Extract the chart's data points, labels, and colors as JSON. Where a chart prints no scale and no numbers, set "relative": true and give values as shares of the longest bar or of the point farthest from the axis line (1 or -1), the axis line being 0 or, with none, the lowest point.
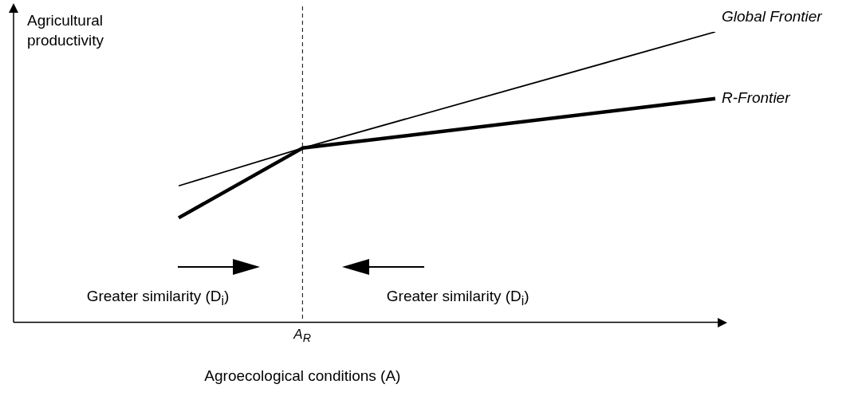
{
  "chart_data": {
    "type": "line",
    "relative": true,
    "xlabel": "Agroecological conditions (A)",
    "ylabel": "Agricultural productivity",
    "categories": [
      null,
      null,
      null,
      null,
      null,
      null,
      null,
      null,
      null,
      null,
      null,
      null,
      null,
      null,
      null,
      null,
      null,
      null
    ],
    "series": [
      {
        "name": "Global Frontier",
        "color": "#000000",
        "values": [
          null,
          null,
          null,
          null,
          0.47,
          null,
          null,
          0.6,
          null,
          null,
          null,
          null,
          null,
          null,
          null,
          null,
          null,
          1
        ]
      },
      {
        "name": "R-Frontier",
        "color": "#000000",
        "values": [
          null,
          null,
          null,
          null,
          0.36,
          null,
          null,
          0.6,
          null,
          null,
          null,
          null,
          null,
          null,
          null,
          null,
          null,
          0.77
        ]
      }
    ],
    "ref_lines": [
      {
        "axis": "x",
        "label": "A$_{R}$",
        "line_style": "dashed"
      }
    ],
    "annotations": [
      "Greater similarity (D$_{i}$)",
      "Greater similarity (D$_{i}$)"
    ],
    "grid": false,
    "legend": false,
    "marker": "none",
    "line_style": "solid"
  }
}
